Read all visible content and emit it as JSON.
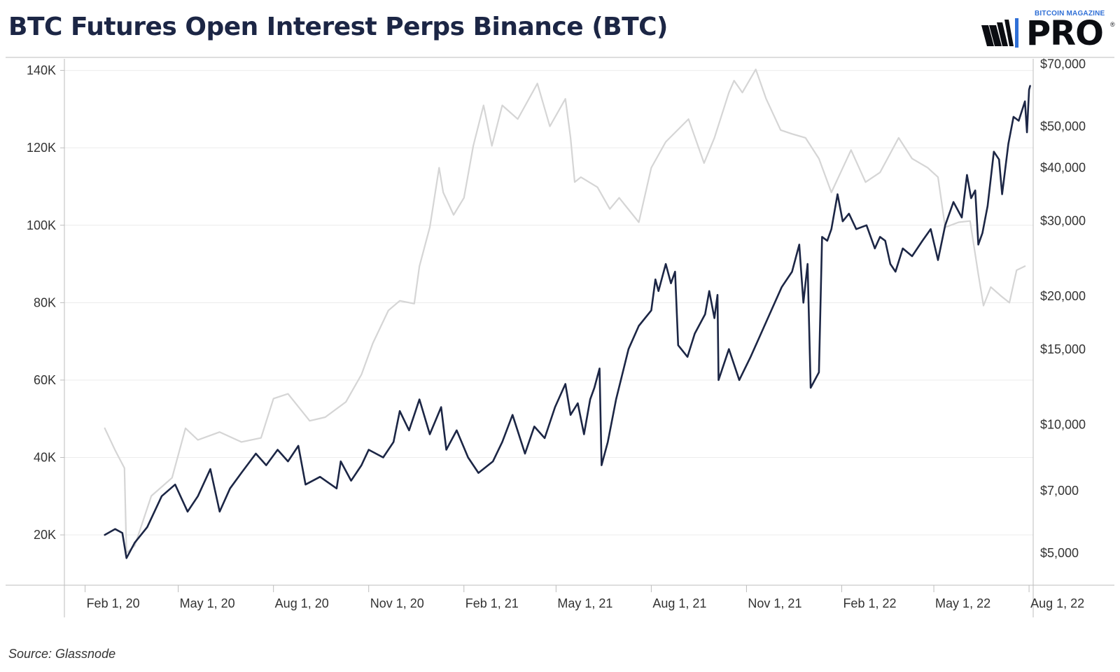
{
  "header": {
    "title": "BTC Futures Open Interest Perps Binance (BTC)",
    "brand_small": "BITCOIN MAGAZINE",
    "brand_large": "PRO",
    "brand_reg": "®"
  },
  "footer": {
    "source": "Source: Glassnode"
  },
  "colors": {
    "open_interest": "#1c2645",
    "price": "#d5d5d5",
    "grid": "#ececec",
    "axis": "#bdbdbd",
    "brand_blue": "#2f6fd6"
  },
  "chart_data": {
    "type": "line",
    "title": "BTC Futures Open Interest Perps Binance (BTC)",
    "xlabel": "",
    "ylabel": "",
    "grid": true,
    "legend": "none",
    "x_range": [
      "2020-01-12",
      "2022-08-05"
    ],
    "x_ticks": [
      "Feb 1, 20",
      "May 1, 20",
      "Aug 1, 20",
      "Nov 1, 20",
      "Feb 1, 21",
      "May 1, 21",
      "Aug 1, 21",
      "Nov 1, 21",
      "Feb 1, 22",
      "May 1, 22",
      "Aug 1, 22"
    ],
    "x_tick_dates": [
      "2020-02-01",
      "2020-05-01",
      "2020-08-01",
      "2020-11-01",
      "2021-02-01",
      "2021-05-01",
      "2021-08-01",
      "2021-11-01",
      "2022-02-01",
      "2022-05-01",
      "2022-08-01"
    ],
    "y_left": {
      "range": [
        7000,
        143000
      ],
      "ticks": [
        20000,
        40000,
        60000,
        80000,
        100000,
        120000,
        140000
      ],
      "tick_labels": [
        "20K",
        "40K",
        "60K",
        "80K",
        "100K",
        "120K",
        "140K"
      ]
    },
    "y_right": {
      "scale": "log",
      "range": [
        4200,
        72000
      ],
      "ticks": [
        5000,
        7000,
        10000,
        15000,
        20000,
        30000,
        40000,
        50000,
        70000
      ],
      "tick_labels": [
        "$5,000",
        "$7,000",
        "$10,000",
        "$15,000",
        "$20,000",
        "$30,000",
        "$40,000",
        "$50,000",
        "$70,000"
      ]
    },
    "series": [
      {
        "key": "open_interest",
        "axis": "left",
        "points": [
          [
            "2020-02-20",
            20000
          ],
          [
            "2020-03-01",
            21500
          ],
          [
            "2020-03-08",
            20500
          ],
          [
            "2020-03-12",
            14000
          ],
          [
            "2020-03-20",
            18000
          ],
          [
            "2020-04-01",
            22000
          ],
          [
            "2020-04-15",
            30000
          ],
          [
            "2020-04-28",
            33000
          ],
          [
            "2020-05-10",
            26000
          ],
          [
            "2020-05-20",
            30000
          ],
          [
            "2020-06-01",
            37000
          ],
          [
            "2020-06-10",
            26000
          ],
          [
            "2020-06-20",
            32000
          ],
          [
            "2020-07-01",
            36000
          ],
          [
            "2020-07-15",
            41000
          ],
          [
            "2020-07-25",
            38000
          ],
          [
            "2020-08-05",
            42000
          ],
          [
            "2020-08-15",
            39000
          ],
          [
            "2020-08-25",
            43000
          ],
          [
            "2020-09-01",
            33000
          ],
          [
            "2020-09-15",
            35000
          ],
          [
            "2020-10-01",
            32000
          ],
          [
            "2020-10-05",
            39000
          ],
          [
            "2020-10-15",
            34000
          ],
          [
            "2020-10-25",
            38000
          ],
          [
            "2020-11-01",
            42000
          ],
          [
            "2020-11-15",
            40000
          ],
          [
            "2020-11-25",
            44000
          ],
          [
            "2020-12-01",
            52000
          ],
          [
            "2020-12-10",
            47000
          ],
          [
            "2020-12-20",
            55000
          ],
          [
            "2020-12-30",
            46000
          ],
          [
            "2021-01-10",
            53000
          ],
          [
            "2021-01-15",
            42000
          ],
          [
            "2021-01-25",
            47000
          ],
          [
            "2021-02-05",
            40000
          ],
          [
            "2021-02-15",
            36000
          ],
          [
            "2021-03-01",
            39000
          ],
          [
            "2021-03-10",
            44000
          ],
          [
            "2021-03-20",
            51000
          ],
          [
            "2021-04-01",
            41000
          ],
          [
            "2021-04-10",
            48000
          ],
          [
            "2021-04-20",
            45000
          ],
          [
            "2021-04-30",
            53000
          ],
          [
            "2021-05-10",
            59000
          ],
          [
            "2021-05-15",
            51000
          ],
          [
            "2021-05-22",
            54000
          ],
          [
            "2021-05-28",
            46000
          ],
          [
            "2021-06-03",
            55000
          ],
          [
            "2021-06-07",
            58000
          ],
          [
            "2021-06-12",
            63000
          ],
          [
            "2021-06-14",
            38000
          ],
          [
            "2021-06-20",
            44000
          ],
          [
            "2021-06-28",
            55000
          ],
          [
            "2021-07-10",
            68000
          ],
          [
            "2021-07-20",
            74000
          ],
          [
            "2021-08-01",
            78000
          ],
          [
            "2021-08-05",
            86000
          ],
          [
            "2021-08-08",
            83000
          ],
          [
            "2021-08-15",
            90000
          ],
          [
            "2021-08-20",
            85000
          ],
          [
            "2021-08-24",
            88000
          ],
          [
            "2021-08-27",
            69000
          ],
          [
            "2021-09-05",
            66000
          ],
          [
            "2021-09-12",
            72000
          ],
          [
            "2021-09-22",
            77000
          ],
          [
            "2021-09-26",
            83000
          ],
          [
            "2021-10-01",
            76000
          ],
          [
            "2021-10-04",
            82000
          ],
          [
            "2021-10-05",
            60000
          ],
          [
            "2021-10-15",
            68000
          ],
          [
            "2021-10-25",
            60000
          ],
          [
            "2021-11-05",
            66000
          ],
          [
            "2021-11-15",
            72000
          ],
          [
            "2021-11-25",
            78000
          ],
          [
            "2021-12-05",
            84000
          ],
          [
            "2021-12-15",
            88000
          ],
          [
            "2021-12-22",
            95000
          ],
          [
            "2021-12-26",
            80000
          ],
          [
            "2021-12-30",
            90000
          ],
          [
            "2022-01-02",
            58000
          ],
          [
            "2022-01-10",
            62000
          ],
          [
            "2022-01-13",
            97000
          ],
          [
            "2022-01-18",
            96000
          ],
          [
            "2022-01-22",
            99000
          ],
          [
            "2022-01-28",
            108000
          ],
          [
            "2022-02-02",
            101000
          ],
          [
            "2022-02-08",
            103000
          ],
          [
            "2022-02-15",
            99000
          ],
          [
            "2022-02-25",
            100000
          ],
          [
            "2022-03-05",
            94000
          ],
          [
            "2022-03-10",
            97000
          ],
          [
            "2022-03-15",
            96000
          ],
          [
            "2022-03-20",
            90000
          ],
          [
            "2022-03-25",
            88000
          ],
          [
            "2022-04-01",
            94000
          ],
          [
            "2022-04-10",
            92000
          ],
          [
            "2022-04-20",
            96000
          ],
          [
            "2022-04-28",
            99000
          ],
          [
            "2022-05-05",
            91000
          ],
          [
            "2022-05-12",
            100000
          ],
          [
            "2022-05-20",
            106000
          ],
          [
            "2022-05-28",
            102000
          ],
          [
            "2022-06-02",
            113000
          ],
          [
            "2022-06-06",
            107000
          ],
          [
            "2022-06-10",
            109000
          ],
          [
            "2022-06-13",
            95000
          ],
          [
            "2022-06-17",
            98000
          ],
          [
            "2022-06-22",
            105000
          ],
          [
            "2022-06-28",
            119000
          ],
          [
            "2022-07-03",
            117000
          ],
          [
            "2022-07-06",
            108000
          ],
          [
            "2022-07-12",
            121000
          ],
          [
            "2022-07-17",
            128000
          ],
          [
            "2022-07-22",
            127000
          ],
          [
            "2022-07-28",
            132000
          ],
          [
            "2022-07-30",
            124000
          ],
          [
            "2022-08-01",
            135000
          ],
          [
            "2022-08-02",
            136000
          ]
        ]
      },
      {
        "key": "price",
        "axis": "right",
        "points": [
          [
            "2020-02-20",
            9800
          ],
          [
            "2020-03-01",
            8700
          ],
          [
            "2020-03-10",
            7900
          ],
          [
            "2020-03-12",
            5000
          ],
          [
            "2020-03-20",
            5200
          ],
          [
            "2020-04-05",
            6800
          ],
          [
            "2020-04-25",
            7500
          ],
          [
            "2020-05-08",
            9800
          ],
          [
            "2020-05-20",
            9200
          ],
          [
            "2020-06-10",
            9600
          ],
          [
            "2020-07-01",
            9100
          ],
          [
            "2020-07-20",
            9300
          ],
          [
            "2020-08-01",
            11500
          ],
          [
            "2020-08-15",
            11800
          ],
          [
            "2020-09-05",
            10200
          ],
          [
            "2020-09-20",
            10400
          ],
          [
            "2020-10-10",
            11300
          ],
          [
            "2020-10-25",
            13100
          ],
          [
            "2020-11-05",
            15500
          ],
          [
            "2020-11-20",
            18500
          ],
          [
            "2020-12-01",
            19500
          ],
          [
            "2020-12-15",
            19200
          ],
          [
            "2020-12-20",
            23500
          ],
          [
            "2020-12-30",
            29000
          ],
          [
            "2021-01-08",
            40000
          ],
          [
            "2021-01-12",
            35000
          ],
          [
            "2021-01-22",
            31000
          ],
          [
            "2021-02-01",
            34000
          ],
          [
            "2021-02-10",
            45000
          ],
          [
            "2021-02-20",
            56000
          ],
          [
            "2021-02-28",
            45000
          ],
          [
            "2021-03-10",
            56000
          ],
          [
            "2021-03-25",
            52000
          ],
          [
            "2021-04-13",
            63000
          ],
          [
            "2021-04-25",
            50000
          ],
          [
            "2021-05-10",
            58000
          ],
          [
            "2021-05-15",
            47000
          ],
          [
            "2021-05-19",
            37000
          ],
          [
            "2021-05-25",
            38000
          ],
          [
            "2021-06-10",
            36000
          ],
          [
            "2021-06-22",
            32000
          ],
          [
            "2021-07-01",
            34000
          ],
          [
            "2021-07-20",
            29800
          ],
          [
            "2021-08-01",
            40000
          ],
          [
            "2021-08-15",
            46000
          ],
          [
            "2021-09-06",
            52000
          ],
          [
            "2021-09-21",
            41000
          ],
          [
            "2021-10-01",
            47000
          ],
          [
            "2021-10-15",
            60000
          ],
          [
            "2021-10-20",
            64000
          ],
          [
            "2021-10-28",
            60000
          ],
          [
            "2021-11-10",
            68000
          ],
          [
            "2021-11-20",
            58000
          ],
          [
            "2021-12-04",
            49000
          ],
          [
            "2021-12-15",
            48000
          ],
          [
            "2021-12-28",
            47000
          ],
          [
            "2022-01-10",
            42000
          ],
          [
            "2022-01-22",
            35000
          ],
          [
            "2022-02-10",
            44000
          ],
          [
            "2022-02-24",
            37000
          ],
          [
            "2022-03-10",
            39000
          ],
          [
            "2022-03-28",
            47000
          ],
          [
            "2022-04-10",
            42000
          ],
          [
            "2022-04-25",
            40000
          ],
          [
            "2022-05-05",
            38000
          ],
          [
            "2022-05-12",
            29000
          ],
          [
            "2022-05-25",
            29800
          ],
          [
            "2022-06-05",
            30000
          ],
          [
            "2022-06-13",
            22500
          ],
          [
            "2022-06-18",
            19000
          ],
          [
            "2022-06-25",
            21000
          ],
          [
            "2022-07-05",
            20000
          ],
          [
            "2022-07-13",
            19300
          ],
          [
            "2022-07-20",
            23000
          ],
          [
            "2022-07-28",
            23500
          ]
        ]
      }
    ]
  }
}
